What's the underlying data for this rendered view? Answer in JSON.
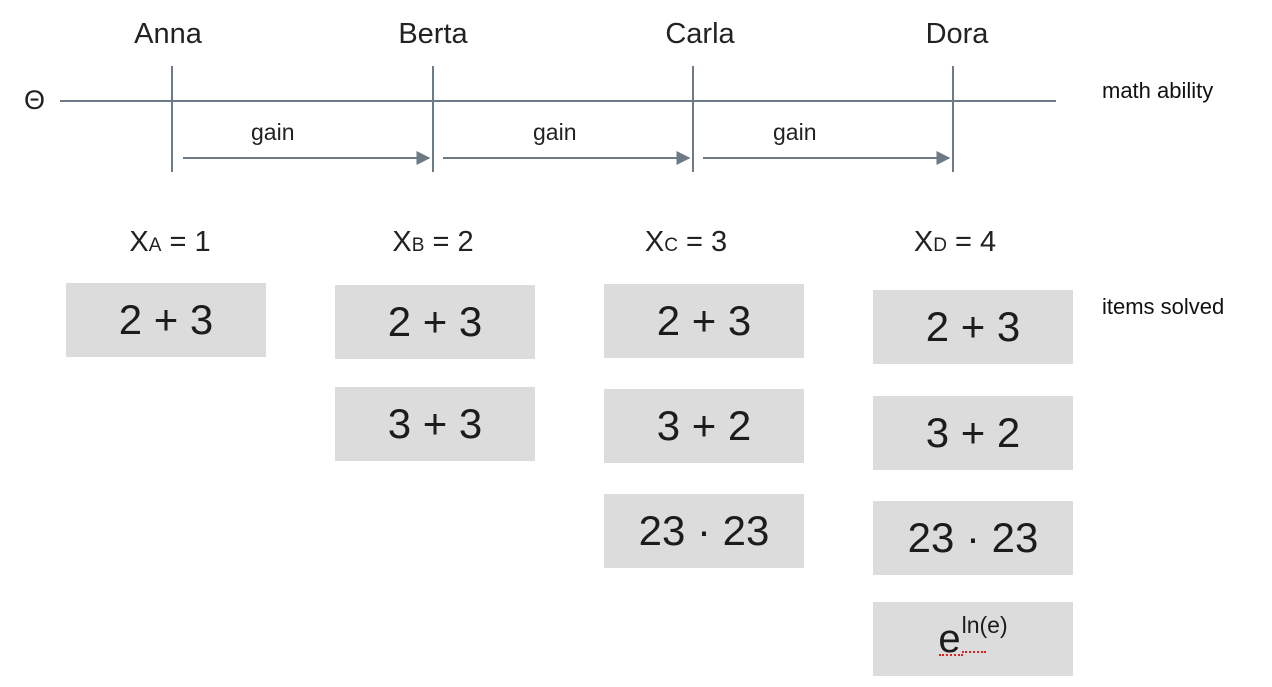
{
  "theta_symbol": "Θ",
  "axis_label": "math ability",
  "items_label": "items solved",
  "gain_label": "gain",
  "persons": [
    {
      "name": "Anna",
      "score": {
        "var": "X",
        "sub": "A",
        "rest": " = 1"
      }
    },
    {
      "name": "Berta",
      "score": {
        "var": "X",
        "sub": "B",
        "rest": " = 2"
      }
    },
    {
      "name": "Carla",
      "score": {
        "var": "X",
        "sub": "C",
        "rest": " = 3"
      }
    },
    {
      "name": "Dora",
      "score": {
        "var": "X",
        "sub": "D",
        "rest": " = 4"
      }
    }
  ],
  "items": {
    "add_23": "2 + 3",
    "add_33": "3 + 3",
    "add_32": "3 + 2",
    "mul": "23 · 23",
    "exp_base": "e",
    "exp_power": "ln(e)"
  }
}
